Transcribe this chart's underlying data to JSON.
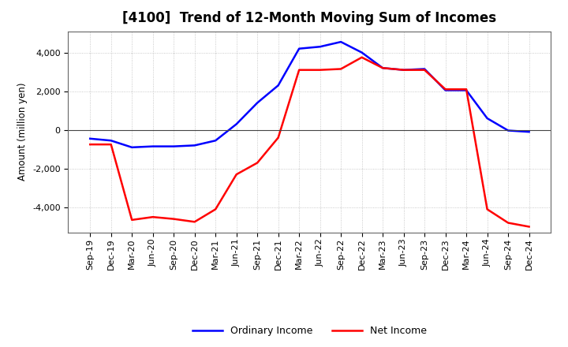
{
  "title": "[4100]  Trend of 12-Month Moving Sum of Incomes",
  "ylabel": "Amount (million yen)",
  "x_labels": [
    "Sep-19",
    "Dec-19",
    "Mar-20",
    "Jun-20",
    "Sep-20",
    "Dec-20",
    "Mar-21",
    "Jun-21",
    "Sep-21",
    "Dec-21",
    "Mar-22",
    "Jun-22",
    "Sep-22",
    "Dec-22",
    "Mar-23",
    "Jun-23",
    "Sep-23",
    "Dec-23",
    "Mar-24",
    "Jun-24",
    "Sep-24",
    "Dec-24"
  ],
  "ordinary_income": [
    -450,
    -550,
    -900,
    -850,
    -850,
    -800,
    -550,
    300,
    1400,
    2300,
    4200,
    4300,
    4550,
    4000,
    3200,
    3100,
    3150,
    2050,
    2050,
    600,
    -30,
    -100
  ],
  "net_income": [
    -750,
    -750,
    -4650,
    -4500,
    -4600,
    -4750,
    -4100,
    -2300,
    -1700,
    -400,
    3100,
    3100,
    3150,
    3750,
    3200,
    3100,
    3100,
    2100,
    2100,
    -4100,
    -4800,
    -5000
  ],
  "ylim": [
    -5300,
    5100
  ],
  "yticks": [
    -4000,
    -2000,
    0,
    2000,
    4000
  ],
  "ordinary_color": "#0000FF",
  "net_color": "#FF0000",
  "background_color": "#FFFFFF",
  "grid_color": "#BBBBBB",
  "linewidth": 1.8,
  "title_fontsize": 12,
  "label_fontsize": 8.5,
  "tick_fontsize": 8,
  "legend_fontsize": 9
}
